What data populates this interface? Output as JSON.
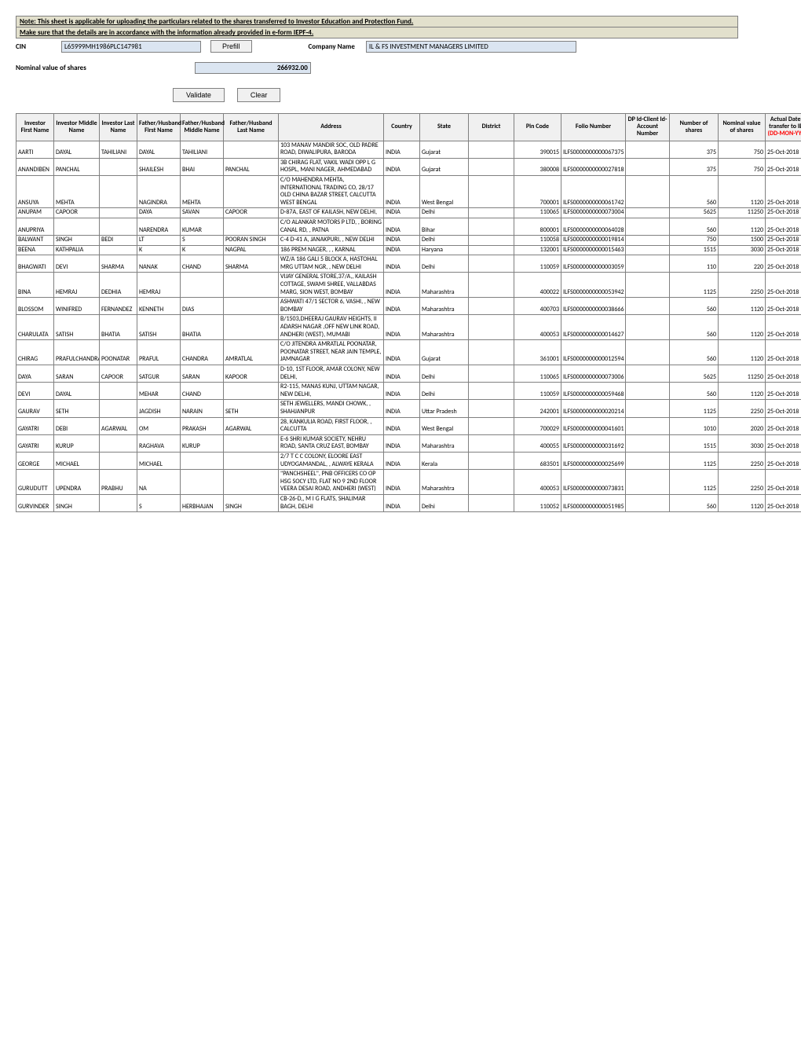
{
  "notes": {
    "line1": "Note: This sheet is applicable for uploading the particulars related to the shares transferred to Investor Education and Protection Fund.",
    "line2": "Make sure that the details are in accordance with the information already provided in e-form IEPF-4."
  },
  "header": {
    "cin_label": "CIN",
    "cin_value": "L65999MH1986PLC147981",
    "prefill_label": "Prefill",
    "company_label": "Company Name",
    "company_value": "IL & FS INVESTMENT MANAGERS LIMITED",
    "nominal_label": "Nominal value of shares",
    "nominal_value": "266932.00",
    "validate_label": "Validate",
    "clear_label": "Clear"
  },
  "columns": [
    "Investor First Name",
    "Investor Middle Name",
    "Investor Last Name",
    "Father/Husband First Name",
    "Father/Husband Middle Name",
    "Father/Husband Last Name",
    "Address",
    "Country",
    "State",
    "District",
    "Pin Code",
    "Folio Number",
    "DP Id-Client Id-Account Number",
    "Number of shares",
    "Nominal value of shares"
  ],
  "date_col_prefix": "Actual Date of transfer to IEPF ",
  "date_col_suffix": "(DD-MON-YYYY)",
  "rows": [
    {
      "fn": "AARTI",
      "mn": "DAYAL",
      "ln": "TAHILIANI",
      "hfn": "DAYAL",
      "hmn": "TAHILIANI",
      "hln": "",
      "addr": "103 MANAV MANDIR SOC, OLD PADRE ROAD, DIWALIPURA, BARODA",
      "country": "INDIA",
      "state": "Gujarat",
      "district": "",
      "pin": "390015",
      "folio": "ILFS0000000000067375",
      "dp": "",
      "numsh": "375",
      "nom": "750",
      "date": "25-Oct-2018"
    },
    {
      "fn": "ANANDIBEN",
      "mn": "PANCHAL",
      "ln": "",
      "hfn": "SHAILESH",
      "hmn": "BHAI",
      "hln": "PANCHAL",
      "addr": "3B CHIRAG FLAT, VAKIL WADI OPP L G HOSPL, MANI NAGER, AHMEDABAD",
      "country": "INDIA",
      "state": "Gujarat",
      "district": "",
      "pin": "380008",
      "folio": "ILFS0000000000027818",
      "dp": "",
      "numsh": "375",
      "nom": "750",
      "date": "25-Oct-2018"
    },
    {
      "fn": "ANSUYA",
      "mn": "MEHTA",
      "ln": "",
      "hfn": "NAGINDRA",
      "hmn": "MEHTA",
      "hln": "",
      "addr": "C/O MAHENDRA MEHTA, INTERNATIONAL TRADING CO, 28/17 OLD CHINA BAZAR STREET, CALCUTTA WEST BENGAL",
      "country": "INDIA",
      "state": "West Bengal",
      "district": "",
      "pin": "700001",
      "folio": "ILFS0000000000061742",
      "dp": "",
      "numsh": "560",
      "nom": "1120",
      "date": "25-Oct-2018"
    },
    {
      "fn": "ANUPAM",
      "mn": "CAPOOR",
      "ln": "",
      "hfn": "DAYA",
      "hmn": "SAVAN",
      "hln": "CAPOOR",
      "addr": "D-87A, EAST OF KAILASH, NEW DELHI,",
      "country": "INDIA",
      "state": "Delhi",
      "district": "",
      "pin": "110065",
      "folio": "ILFS0000000000073004",
      "dp": "",
      "numsh": "5625",
      "nom": "11250",
      "date": "25-Oct-2018"
    },
    {
      "fn": "ANUPRIYA",
      "mn": "",
      "ln": "",
      "hfn": "NARENDRA",
      "hmn": "KUMAR",
      "hln": "",
      "addr": "C/O ALANKAR MOTORS P LTD, , BORING CANAL RD, , PATNA",
      "country": "INDIA",
      "state": "Bihar",
      "district": "",
      "pin": "800001",
      "folio": "ILFS0000000000064028",
      "dp": "",
      "numsh": "560",
      "nom": "1120",
      "date": "25-Oct-2018"
    },
    {
      "fn": "BALWANT",
      "mn": "SINGH",
      "ln": "BEDI",
      "hfn": "LT",
      "hmn": "S",
      "hln": "POORAN SINGH",
      "addr": "C-4 D-41 A, JANAKPURI, , NEW DELHI",
      "country": "INDIA",
      "state": "Delhi",
      "district": "",
      "pin": "110058",
      "folio": "ILFS0000000000019814",
      "dp": "",
      "numsh": "750",
      "nom": "1500",
      "date": "25-Oct-2018"
    },
    {
      "fn": "BEENA",
      "mn": "KATHPALIA",
      "ln": "",
      "hfn": "K",
      "hmn": "K",
      "hln": "NAGPAL",
      "addr": "186 PREM NAGER, , , KARNAL",
      "country": "INDIA",
      "state": "Haryana",
      "district": "",
      "pin": "132001",
      "folio": "ILFS0000000000015463",
      "dp": "",
      "numsh": "1515",
      "nom": "3030",
      "date": "25-Oct-2018"
    },
    {
      "fn": "BHAGWATI",
      "mn": "DEVI",
      "ln": "SHARMA",
      "hfn": "NANAK",
      "hmn": "CHAND",
      "hln": "SHARMA",
      "addr": "WZ/A 186 GALI 5 BLOCK A, HASTOHAL MRG UTTAM NGR, , NEW DELHI",
      "country": "INDIA",
      "state": "Delhi",
      "district": "",
      "pin": "110059",
      "folio": "ILFS0000000000003059",
      "dp": "",
      "numsh": "110",
      "nom": "220",
      "date": "25-Oct-2018"
    },
    {
      "fn": "BINA",
      "mn": "HEMRAJ",
      "ln": "DEDHIA",
      "hfn": "HEMRAJ",
      "hmn": "",
      "hln": "",
      "addr": "VIJAY GENERAL STORE,37/A,, KAILASH COTTAGE, SWAMI SHREE, VALLABDAS MARG, SION WEST, BOMBAY",
      "country": "INDIA",
      "state": "Maharashtra",
      "district": "",
      "pin": "400022",
      "folio": "ILFS0000000000053942",
      "dp": "",
      "numsh": "1125",
      "nom": "2250",
      "date": "25-Oct-2018"
    },
    {
      "fn": "BLOSSOM",
      "mn": "WINIFRED",
      "ln": "FERNANDEZ",
      "hfn": "KENNETH",
      "hmn": "DIAS",
      "hln": "",
      "addr": "ASHWATI 47/1 SECTOR 6, VASHI, , NEW BOMBAY",
      "country": "INDIA",
      "state": "Maharashtra",
      "district": "",
      "pin": "400703",
      "folio": "ILFS0000000000038666",
      "dp": "",
      "numsh": "560",
      "nom": "1120",
      "date": "25-Oct-2018"
    },
    {
      "fn": "CHARULATA",
      "mn": "SATISH",
      "ln": "BHATIA",
      "hfn": "SATISH",
      "hmn": "BHATIA",
      "hln": "",
      "addr": "B/1503,DHEERAJ GAURAV HEIGHTS, II ADARSH NAGAR ,OFF NEW LINK ROAD, ANDHERI (WEST), MUMABI",
      "country": "INDIA",
      "state": "Maharashtra",
      "district": "",
      "pin": "400053",
      "folio": "ILFS0000000000014627",
      "dp": "",
      "numsh": "560",
      "nom": "1120",
      "date": "25-Oct-2018"
    },
    {
      "fn": "CHIRAG",
      "mn": "PRAFULCHANDRA",
      "ln": "POONATAR",
      "hfn": "PRAFUL",
      "hmn": "CHANDRA",
      "hln": "AMRATLAL",
      "addr": "C/O JITENDRA AMRATLAL POONATAR, POONATAR STREET, NEAR JAIN TEMPLE, JAMNAGAR",
      "country": "INDIA",
      "state": "Gujarat",
      "district": "",
      "pin": "361001",
      "folio": "ILFS0000000000012594",
      "dp": "",
      "numsh": "560",
      "nom": "1120",
      "date": "25-Oct-2018"
    },
    {
      "fn": "DAYA",
      "mn": "SARAN",
      "ln": "CAPOOR",
      "hfn": "SATGUR",
      "hmn": "SARAN",
      "hln": "KAPOOR",
      "addr": "D-10, 1ST FLOOR, AMAR COLONY, NEW DELHI,",
      "country": "INDIA",
      "state": "Delhi",
      "district": "",
      "pin": "110065",
      "folio": "ILFS0000000000073006",
      "dp": "",
      "numsh": "5625",
      "nom": "11250",
      "date": "25-Oct-2018"
    },
    {
      "fn": "DEVI",
      "mn": "DAYAL",
      "ln": "",
      "hfn": "MEHAR",
      "hmn": "CHAND",
      "hln": "",
      "addr": "R2-115, MANAS KUNJ, UTTAM NAGAR, NEW DELHI,",
      "country": "INDIA",
      "state": "Delhi",
      "district": "",
      "pin": "110059",
      "folio": "ILFS0000000000059468",
      "dp": "",
      "numsh": "560",
      "nom": "1120",
      "date": "25-Oct-2018"
    },
    {
      "fn": "GAURAV",
      "mn": "SETH",
      "ln": "",
      "hfn": "JAGDISH",
      "hmn": "NARAIN",
      "hln": "SETH",
      "addr": "SETH JEWELLERS, MANDI CHOWK, , SHAHJANPUR",
      "country": "INDIA",
      "state": "Uttar Pradesh",
      "district": "",
      "pin": "242001",
      "folio": "ILFS0000000000020214",
      "dp": "",
      "numsh": "1125",
      "nom": "2250",
      "date": "25-Oct-2018"
    },
    {
      "fn": "GAYATRI",
      "mn": "DEBI",
      "ln": "AGARWAL",
      "hfn": "OM",
      "hmn": "PRAKASH",
      "hln": "AGARWAL",
      "addr": "28, KANKULIA ROAD, FIRST FLOOR, , CALCUTTA",
      "country": "INDIA",
      "state": "West Bengal",
      "district": "",
      "pin": "700029",
      "folio": "ILFS0000000000041601",
      "dp": "",
      "numsh": "1010",
      "nom": "2020",
      "date": "25-Oct-2018"
    },
    {
      "fn": "GAYATRI",
      "mn": "KURUP",
      "ln": "",
      "hfn": "RAGHAVA",
      "hmn": "KURUP",
      "hln": "",
      "addr": "E-6 SHRI KUMAR SOCIETY, NEHRU ROAD, SANTA CRUZ EAST, BOMBAY",
      "country": "INDIA",
      "state": "Maharashtra",
      "district": "",
      "pin": "400055",
      "folio": "ILFS0000000000031692",
      "dp": "",
      "numsh": "1515",
      "nom": "3030",
      "date": "25-Oct-2018"
    },
    {
      "fn": "GEORGE",
      "mn": "MICHAEL",
      "ln": "",
      "hfn": "MICHAEL",
      "hmn": "",
      "hln": "",
      "addr": "2/7 T C C COLONY, ELOORE EAST UDYOGAMANDAL, , ALWAYE KERALA",
      "country": "INDIA",
      "state": "Kerala",
      "district": "",
      "pin": "683501",
      "folio": "ILFS0000000000025699",
      "dp": "",
      "numsh": "1125",
      "nom": "2250",
      "date": "25-Oct-2018"
    },
    {
      "fn": "GURUDUTT",
      "mn": "UPENDRA",
      "ln": "PRABHU",
      "hfn": "NA",
      "hmn": "",
      "hln": "",
      "addr": "\"PANCHSHEEL\", PNB OFFICERS CO OP HSG SOCY LTD, FLAT NO 9 2ND FLOOR VEERA DESAI ROAD, ANDHERI (WEST)",
      "country": "INDIA",
      "state": "Maharashtra",
      "district": "",
      "pin": "400053",
      "folio": "ILFS0000000000073831",
      "dp": "",
      "numsh": "1125",
      "nom": "2250",
      "date": "25-Oct-2018"
    },
    {
      "fn": "GURVINDER",
      "mn": "SINGH",
      "ln": "",
      "hfn": "S",
      "hmn": "HERBHAJAN",
      "hln": "SINGH",
      "addr": "CB-26-D,, M I G FLATS, SHALIMAR BAGH, DELHI",
      "country": "INDIA",
      "state": "Delhi",
      "district": "",
      "pin": "110052",
      "folio": "ILFS0000000000051985",
      "dp": "",
      "numsh": "560",
      "nom": "1120",
      "date": "25-Oct-2018"
    }
  ]
}
